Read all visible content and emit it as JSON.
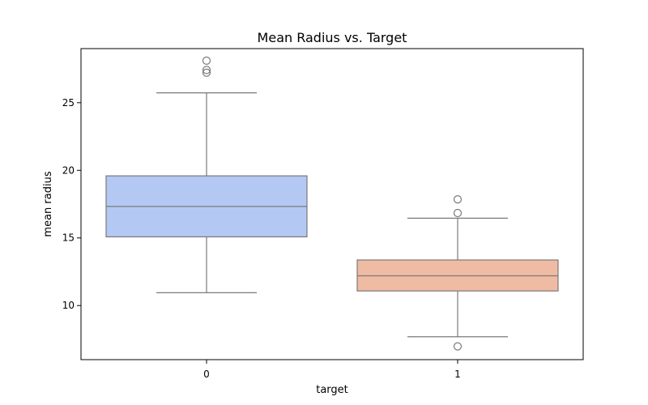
{
  "chart_data": {
    "type": "box",
    "title": "Mean Radius vs. Target",
    "xlabel": "target",
    "ylabel": "mean radius",
    "categories": [
      "0",
      "1"
    ],
    "ylim": [
      6.0,
      29.0
    ],
    "yticks": [
      10,
      15,
      20,
      25
    ],
    "grid": false,
    "legend": "none",
    "series": [
      {
        "category": "0",
        "color": "#b4c8f4",
        "whisker_low": 10.95,
        "q1": 15.08,
        "median": 17.33,
        "q3": 19.59,
        "whisker_high": 25.73,
        "outliers": [
          27.22,
          27.42,
          28.11
        ]
      },
      {
        "category": "1",
        "color": "#f0bba3",
        "whisker_low": 7.69,
        "q1": 11.08,
        "median": 12.2,
        "q3": 13.37,
        "whisker_high": 16.46,
        "outliers": [
          6.98,
          16.84,
          17.85
        ]
      }
    ]
  }
}
